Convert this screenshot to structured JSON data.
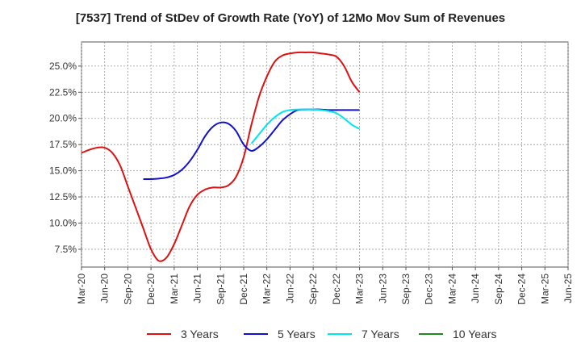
{
  "chart_data": {
    "type": "line",
    "title": "[7537]  Trend of StDev of Growth Rate (YoY) of 12Mo Mov Sum of Revenues",
    "xlabel": "",
    "ylabel": "",
    "x_ticks": [
      "Mar-20",
      "Jun-20",
      "Sep-20",
      "Dec-20",
      "Mar-21",
      "Jun-21",
      "Sep-21",
      "Dec-21",
      "Mar-22",
      "Jun-22",
      "Sep-22",
      "Dec-22",
      "Mar-23",
      "Jun-23",
      "Sep-23",
      "Dec-23",
      "Mar-24",
      "Jun-24",
      "Sep-24",
      "Dec-24",
      "Mar-25",
      "Jun-25"
    ],
    "y_ticks": [
      "7.5%",
      "10.0%",
      "12.5%",
      "15.0%",
      "17.5%",
      "20.0%",
      "22.5%",
      "25.0%"
    ],
    "y_tick_values": [
      7.5,
      10,
      12.5,
      15,
      17.5,
      20,
      22.5,
      25
    ],
    "ylim": [
      5.8,
      27.3
    ],
    "grid": true,
    "legend_position": "bottom",
    "series": [
      {
        "name": "3 Years",
        "color": "#dd1111",
        "values": [
          16.7,
          17.0,
          17.2,
          17.2,
          16.7,
          15.5,
          13.5,
          11.5,
          9.5,
          7.5,
          6.4,
          6.7,
          8.0,
          9.8,
          11.6,
          12.7,
          13.2,
          13.4,
          13.4,
          13.6,
          14.4,
          16.3,
          19.4,
          22.1,
          24.0,
          25.4,
          26.0,
          26.2,
          26.3,
          26.3,
          26.3,
          26.2,
          26.1,
          25.9,
          25.0,
          23.5,
          22.5
        ],
        "start_index": 0
      },
      {
        "name": "5 Years",
        "color": "#1111cc",
        "values": [
          14.2,
          14.2,
          14.25,
          14.35,
          14.6,
          15.1,
          15.9,
          17.0,
          18.3,
          19.2,
          19.6,
          19.5,
          18.8,
          17.5,
          16.9,
          17.3,
          18.0,
          18.9,
          19.8,
          20.4,
          20.8,
          20.85,
          20.85,
          20.85,
          20.8,
          20.8,
          20.8,
          20.8,
          20.8
        ],
        "start_index": 8
      },
      {
        "name": "7 Years",
        "color": "#00e5ee",
        "values": [
          17.6,
          18.5,
          19.4,
          20.1,
          20.6,
          20.8,
          20.85,
          20.85,
          20.85,
          20.8,
          20.7,
          20.5,
          20.0,
          19.4,
          19.0
        ],
        "start_index": 22
      },
      {
        "name": "10 Years",
        "color": "#228822",
        "values": [],
        "start_index": 0
      }
    ]
  }
}
